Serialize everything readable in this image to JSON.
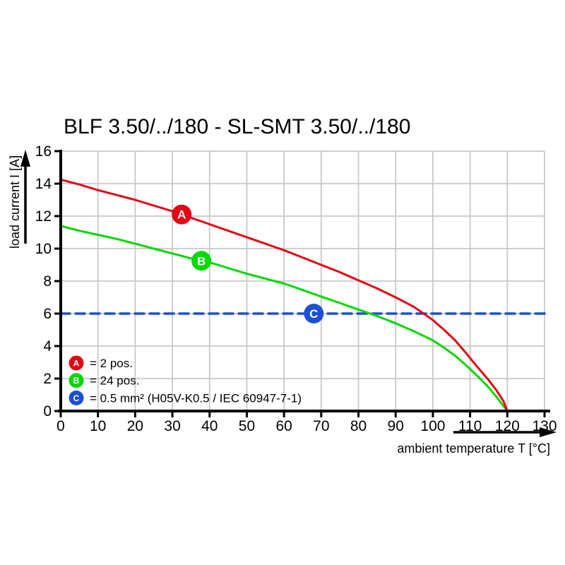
{
  "title": "BLF 3.50/../180 - SL-SMT 3.50/../180",
  "chart_data": {
    "type": "line",
    "title": "BLF 3.50/../180 - SL-SMT 3.50/../180",
    "xlabel": "ambient temperature T [°C]",
    "ylabel": "load current I [A]",
    "xlim": [
      0,
      130
    ],
    "ylim": [
      0,
      16
    ],
    "xticks": [
      0,
      10,
      20,
      30,
      40,
      50,
      60,
      70,
      80,
      90,
      100,
      110,
      120,
      130
    ],
    "yticks": [
      0,
      2,
      4,
      6,
      8,
      10,
      12,
      14,
      16
    ],
    "grid": true,
    "legend_position": "inside-bottom-left",
    "colors": {
      "grid": "#c8c8c8",
      "axis": "#000000",
      "background": "#ffffff"
    },
    "series": [
      {
        "id": "A",
        "legend_label": "= 2 pos.",
        "color": "#e30613",
        "style": "solid",
        "marker": {
          "letter": "A",
          "x": 32.5,
          "y": 12.1
        },
        "points": [
          [
            0,
            14.25
          ],
          [
            5,
            13.95
          ],
          [
            10,
            13.6
          ],
          [
            15,
            13.3
          ],
          [
            20,
            13.0
          ],
          [
            25,
            12.65
          ],
          [
            30,
            12.3
          ],
          [
            35,
            11.9
          ],
          [
            40,
            11.5
          ],
          [
            45,
            11.1
          ],
          [
            50,
            10.7
          ],
          [
            55,
            10.3
          ],
          [
            60,
            9.9
          ],
          [
            65,
            9.45
          ],
          [
            70,
            9.0
          ],
          [
            75,
            8.55
          ],
          [
            80,
            8.05
          ],
          [
            85,
            7.55
          ],
          [
            90,
            7.0
          ],
          [
            95,
            6.4
          ],
          [
            100,
            5.6
          ],
          [
            103,
            5.0
          ],
          [
            106,
            4.35
          ],
          [
            109,
            3.55
          ],
          [
            112,
            2.7
          ],
          [
            115,
            1.9
          ],
          [
            117,
            1.3
          ],
          [
            119,
            0.6
          ],
          [
            120,
            0
          ]
        ]
      },
      {
        "id": "B",
        "legend_label": "= 24 pos.",
        "color": "#00d800",
        "style": "solid",
        "marker": {
          "letter": "B",
          "x": 37.8,
          "y": 9.25
        },
        "points": [
          [
            0,
            11.4
          ],
          [
            5,
            11.1
          ],
          [
            10,
            10.85
          ],
          [
            15,
            10.6
          ],
          [
            20,
            10.3
          ],
          [
            25,
            10.0
          ],
          [
            30,
            9.7
          ],
          [
            35,
            9.4
          ],
          [
            40,
            9.15
          ],
          [
            45,
            8.8
          ],
          [
            50,
            8.45
          ],
          [
            55,
            8.15
          ],
          [
            60,
            7.85
          ],
          [
            65,
            7.45
          ],
          [
            70,
            7.05
          ],
          [
            75,
            6.65
          ],
          [
            80,
            6.25
          ],
          [
            85,
            5.85
          ],
          [
            90,
            5.4
          ],
          [
            95,
            4.9
          ],
          [
            100,
            4.35
          ],
          [
            103,
            3.9
          ],
          [
            106,
            3.4
          ],
          [
            109,
            2.8
          ],
          [
            112,
            2.15
          ],
          [
            115,
            1.45
          ],
          [
            117,
            0.9
          ],
          [
            119,
            0.3
          ],
          [
            120,
            0
          ]
        ]
      },
      {
        "id": "C",
        "legend_label": "= 0.5 mm² (H05V-K0.5 / IEC 60947-7-1)",
        "color": "#1c4fd6",
        "style": "dashed",
        "marker": {
          "letter": "C",
          "x": 68,
          "y": 6
        },
        "points": [
          [
            0,
            6
          ],
          [
            130,
            6
          ]
        ]
      }
    ]
  }
}
